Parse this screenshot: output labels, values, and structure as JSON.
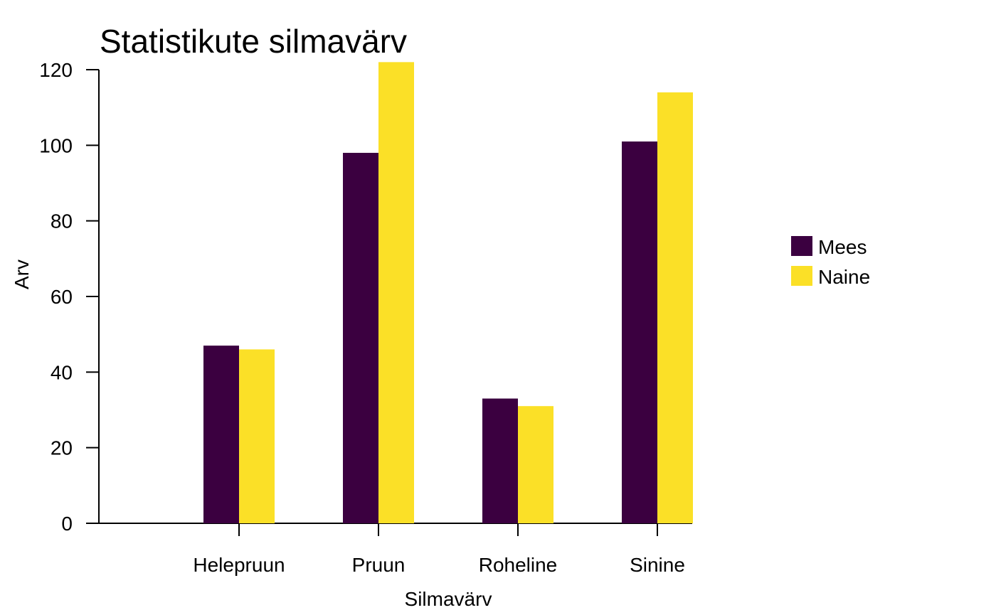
{
  "chart_data": {
    "type": "bar",
    "title": "Statistikute silmavärv",
    "xlabel": "Silmavärv",
    "ylabel": "Arv",
    "categories": [
      "Helepruun",
      "Pruun",
      "Roheline",
      "Sinine"
    ],
    "series": [
      {
        "name": "Mees",
        "color": "#3b0040",
        "values": [
          47,
          98,
          33,
          101
        ]
      },
      {
        "name": "Naine",
        "color": "#fbe027",
        "values": [
          46,
          122,
          31,
          114
        ]
      }
    ],
    "y_ticks": [
      0,
      20,
      40,
      60,
      80,
      100,
      120
    ],
    "ylim": [
      0,
      120
    ],
    "grid": false,
    "legend_position": "right"
  }
}
